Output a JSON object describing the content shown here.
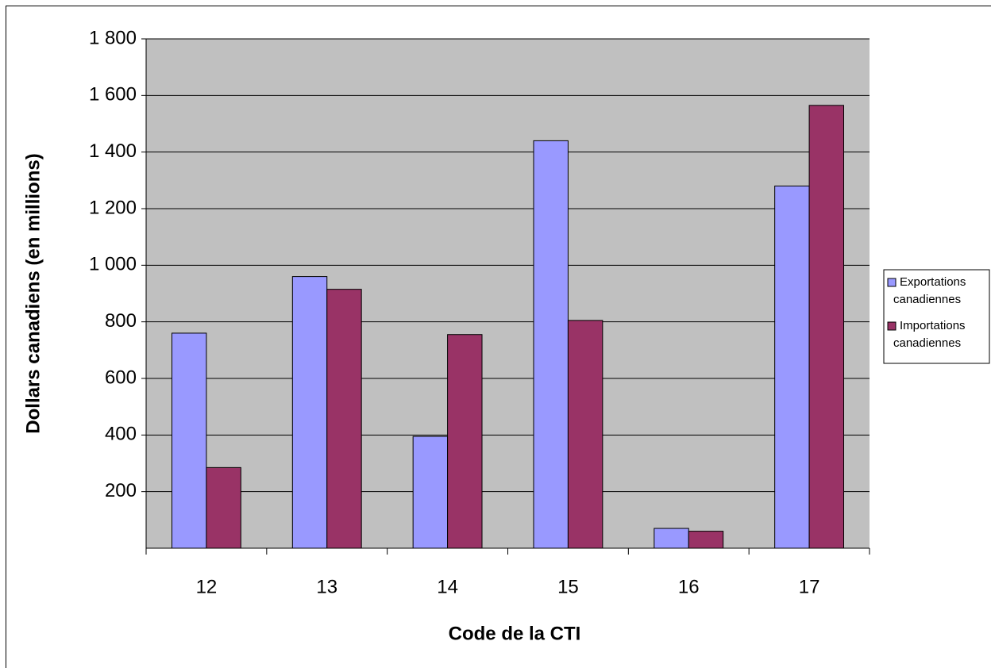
{
  "chart_data": {
    "type": "bar",
    "x_label": "Code de la CTI",
    "y_label": "Dollars canadiens (en millions)",
    "categories": [
      "12",
      "13",
      "14",
      "15",
      "16",
      "17"
    ],
    "series": [
      {
        "name": "Exportations canadiennes",
        "color": "#9999ff",
        "values": [
          760,
          960,
          395,
          1440,
          70,
          1280
        ]
      },
      {
        "name": "Importations canadiennes",
        "color": "#993366",
        "values": [
          285,
          915,
          755,
          805,
          60,
          1565
        ]
      }
    ],
    "ylim": [
      0,
      1800
    ],
    "yticks": [
      {
        "value": 200,
        "label": "200"
      },
      {
        "value": 400,
        "label": "400"
      },
      {
        "value": 600,
        "label": "600"
      },
      {
        "value": 800,
        "label": "800"
      },
      {
        "value": 1000,
        "label": "1 000"
      },
      {
        "value": 1200,
        "label": "1 200"
      },
      {
        "value": 1400,
        "label": "1 400"
      },
      {
        "value": 1600,
        "label": "1 600"
      },
      {
        "value": 1800,
        "label": "1 800"
      }
    ],
    "grid": true,
    "legend": "right"
  }
}
